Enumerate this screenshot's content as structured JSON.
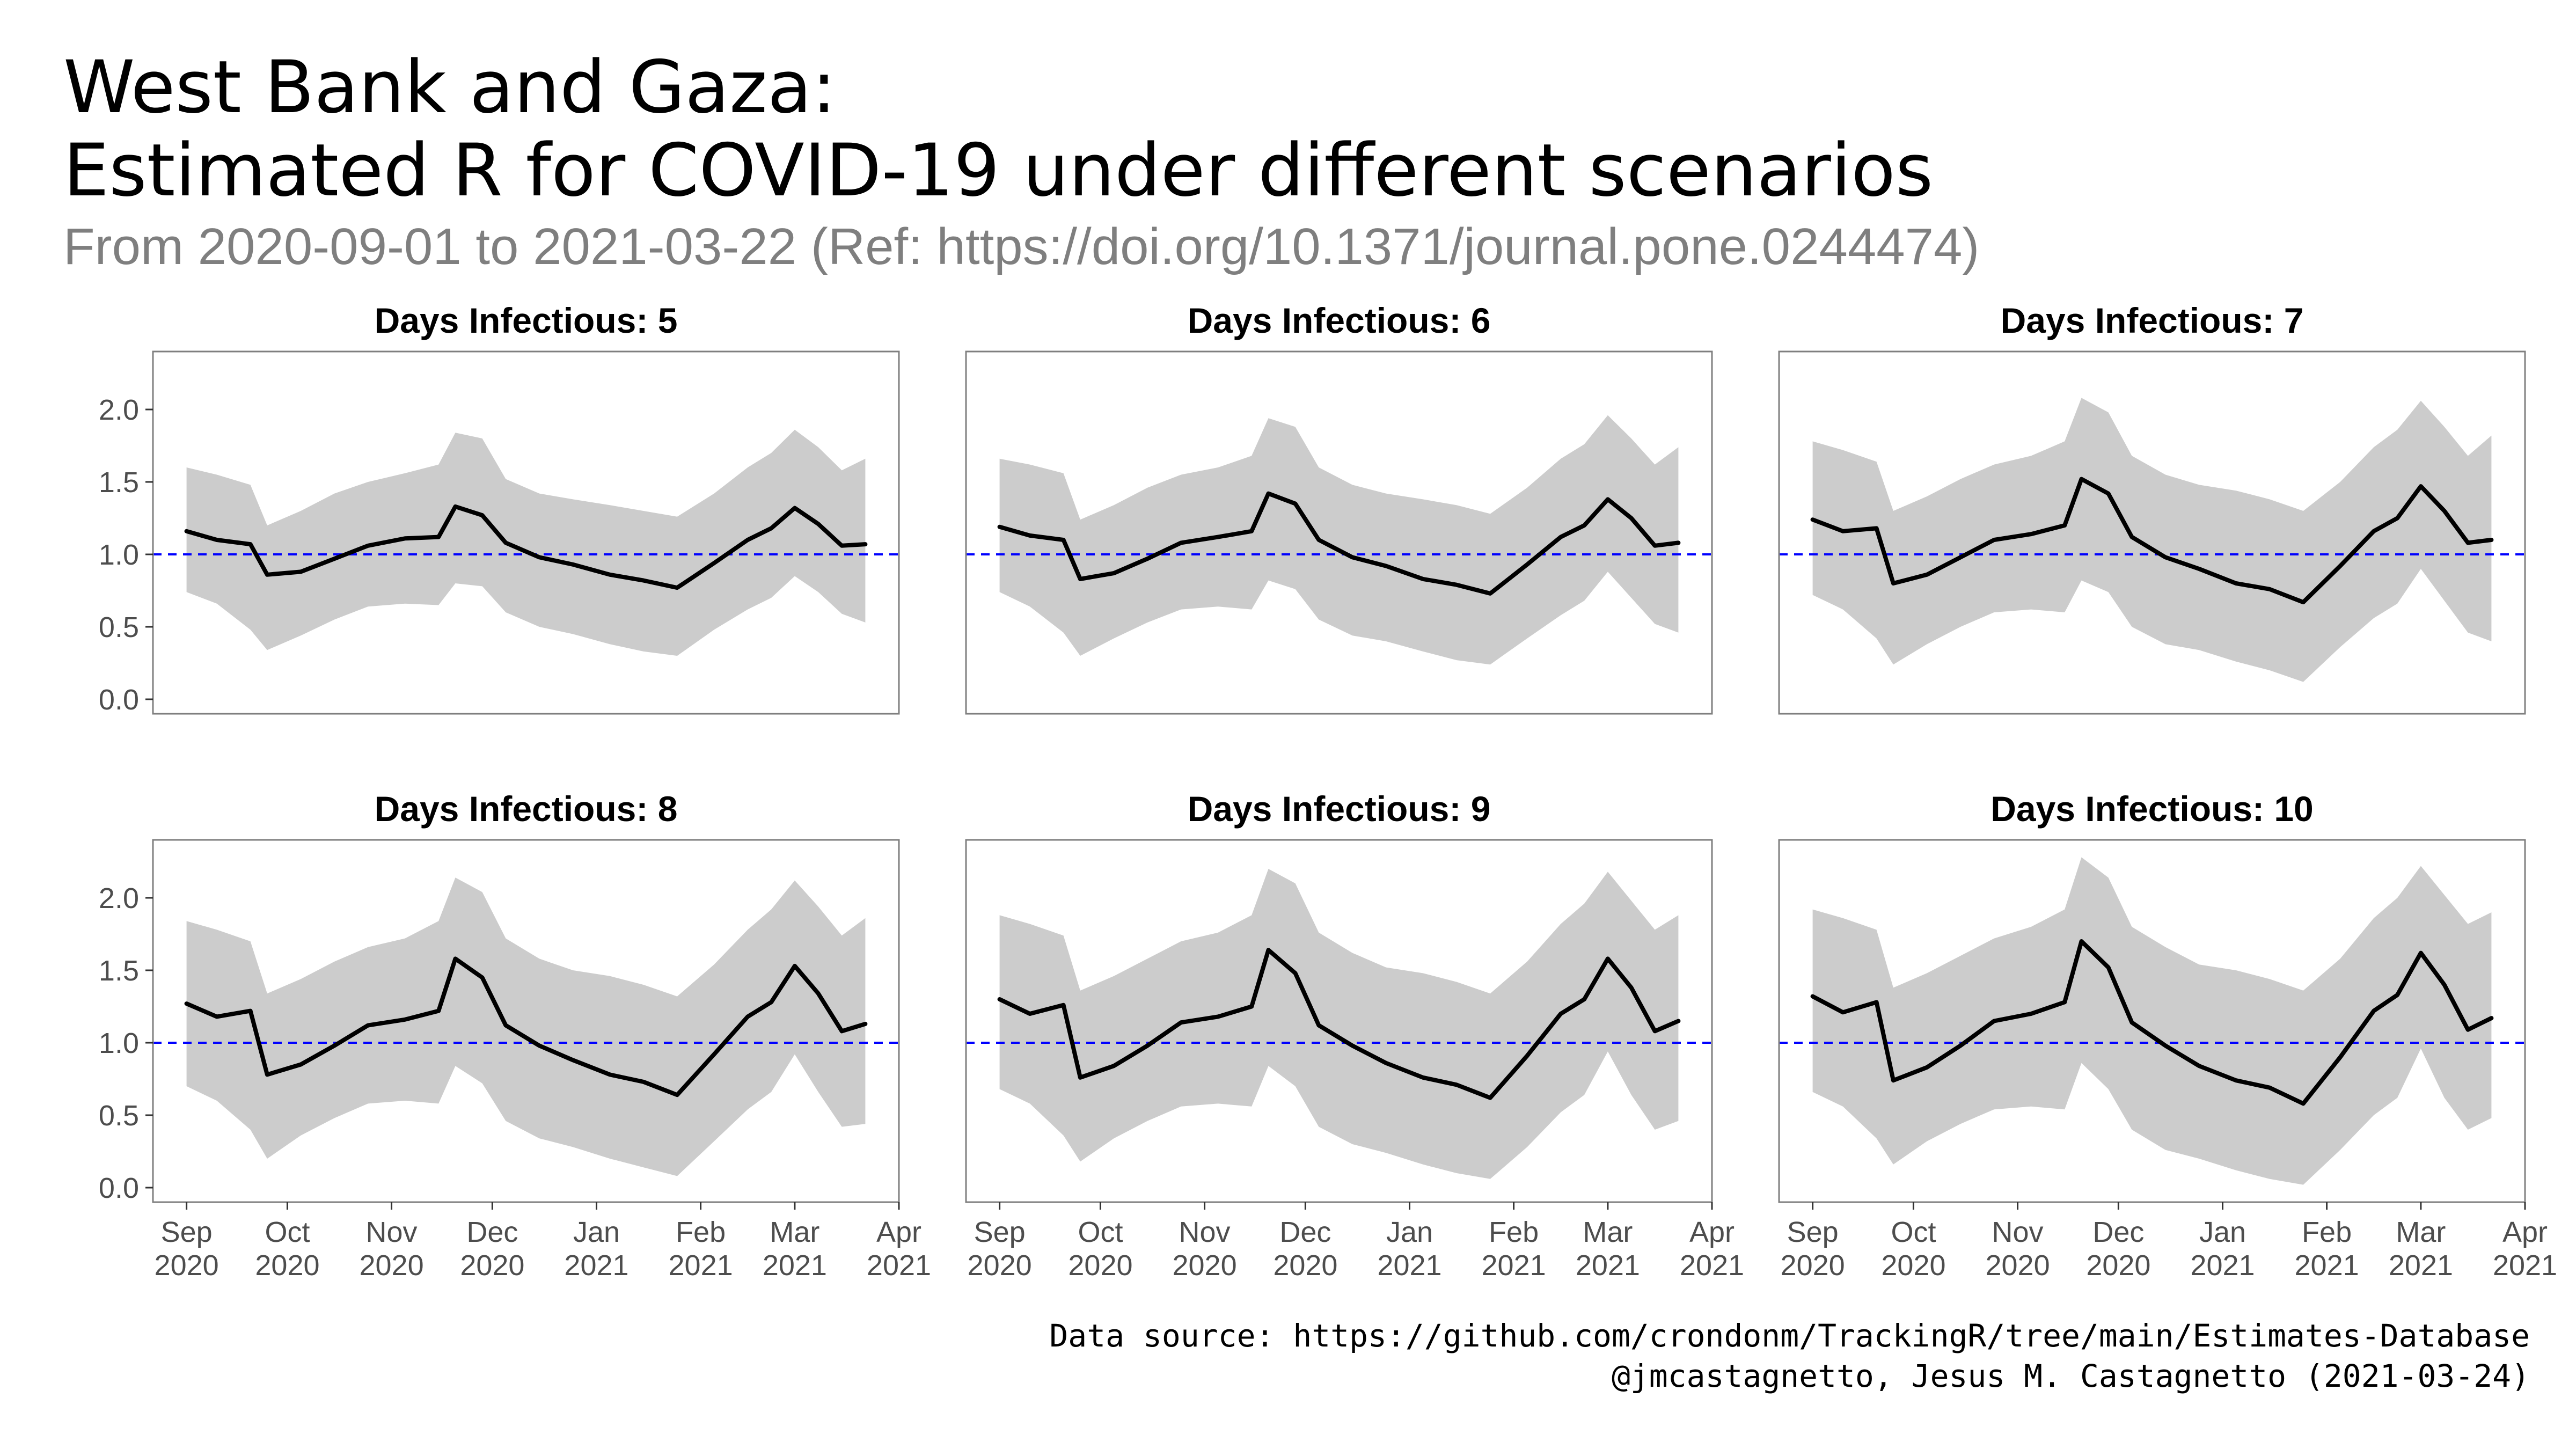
{
  "title_line1": "West Bank and Gaza:",
  "title_line2": "Estimated R for COVID-19 under different scenarios",
  "subtitle": "From 2020-09-01 to 2021-03-22 (Ref: https://doi.org/10.1371/journal.pone.0244474)",
  "caption_line1": "Data source: https://github.com/crondonm/TrackingR/tree/main/Estimates-Database",
  "caption_line2": "@jmcastagnetto, Jesus M. Castagnetto (2021-03-24)",
  "colors": {
    "line": "#000000",
    "ribbon": "#cccccc",
    "reference": "#0000ff",
    "panel_border": "#7f7f7f",
    "tick_text": "#4d4d4d"
  },
  "chart_data": {
    "type": "line",
    "layout": "facet grid, 2 rows x 3 columns",
    "grid": false,
    "y_ticks": [
      "0.0",
      "0.5",
      "1.0",
      "1.5",
      "2.0"
    ],
    "ylim": [
      -0.1,
      2.4
    ],
    "xlim": [
      "2020-08-22",
      "2021-04-01"
    ],
    "x_ticks": [
      {
        "date": "2020-09-01",
        "label": [
          "Sep",
          "2020"
        ]
      },
      {
        "date": "2020-10-01",
        "label": [
          "Oct",
          "2020"
        ]
      },
      {
        "date": "2020-11-01",
        "label": [
          "Nov",
          "2020"
        ]
      },
      {
        "date": "2020-12-01",
        "label": [
          "Dec",
          "2020"
        ]
      },
      {
        "date": "2021-01-01",
        "label": [
          "Jan",
          "2021"
        ]
      },
      {
        "date": "2021-02-01",
        "label": [
          "Feb",
          "2021"
        ]
      },
      {
        "date": "2021-03-01",
        "label": [
          "Mar",
          "2021"
        ]
      },
      {
        "date": "2021-04-01",
        "label": [
          "Apr",
          "2021"
        ]
      }
    ],
    "reference_line": 1.0,
    "panels": [
      {
        "title": "Days Infectious: 5",
        "dates": [
          "2020-09-01",
          "2020-09-10",
          "2020-09-20",
          "2020-09-25",
          "2020-10-05",
          "2020-10-15",
          "2020-10-25",
          "2020-11-05",
          "2020-11-15",
          "2020-11-20",
          "2020-11-28",
          "2020-12-05",
          "2020-12-15",
          "2020-12-25",
          "2021-01-05",
          "2021-01-15",
          "2021-01-25",
          "2021-02-05",
          "2021-02-15",
          "2021-02-22",
          "2021-03-01",
          "2021-03-08",
          "2021-03-15",
          "2021-03-22"
        ],
        "r": [
          1.16,
          1.1,
          1.07,
          0.86,
          0.88,
          0.97,
          1.06,
          1.11,
          1.12,
          1.33,
          1.27,
          1.08,
          0.98,
          0.93,
          0.86,
          0.82,
          0.77,
          0.94,
          1.1,
          1.18,
          1.32,
          1.21,
          1.06,
          1.07
        ],
        "lower": [
          0.74,
          0.66,
          0.48,
          0.34,
          0.44,
          0.55,
          0.64,
          0.66,
          0.65,
          0.8,
          0.78,
          0.6,
          0.5,
          0.45,
          0.38,
          0.33,
          0.3,
          0.48,
          0.62,
          0.7,
          0.85,
          0.74,
          0.59,
          0.53
        ],
        "upper": [
          1.6,
          1.55,
          1.48,
          1.2,
          1.3,
          1.42,
          1.5,
          1.56,
          1.62,
          1.84,
          1.8,
          1.52,
          1.42,
          1.38,
          1.34,
          1.3,
          1.26,
          1.42,
          1.6,
          1.7,
          1.86,
          1.74,
          1.58,
          1.66
        ]
      },
      {
        "title": "Days Infectious: 6",
        "dates": [
          "2020-09-01",
          "2020-09-10",
          "2020-09-20",
          "2020-09-25",
          "2020-10-05",
          "2020-10-15",
          "2020-10-25",
          "2020-11-05",
          "2020-11-15",
          "2020-11-20",
          "2020-11-28",
          "2020-12-05",
          "2020-12-15",
          "2020-12-25",
          "2021-01-05",
          "2021-01-15",
          "2021-01-25",
          "2021-02-05",
          "2021-02-15",
          "2021-02-22",
          "2021-03-01",
          "2021-03-08",
          "2021-03-15",
          "2021-03-22"
        ],
        "r": [
          1.19,
          1.13,
          1.1,
          0.83,
          0.87,
          0.97,
          1.08,
          1.12,
          1.16,
          1.42,
          1.35,
          1.1,
          0.98,
          0.92,
          0.83,
          0.79,
          0.73,
          0.93,
          1.12,
          1.2,
          1.38,
          1.25,
          1.06,
          1.08
        ],
        "lower": [
          0.74,
          0.64,
          0.46,
          0.3,
          0.42,
          0.53,
          0.62,
          0.64,
          0.62,
          0.82,
          0.76,
          0.55,
          0.44,
          0.4,
          0.33,
          0.27,
          0.24,
          0.42,
          0.58,
          0.68,
          0.88,
          0.7,
          0.52,
          0.46
        ],
        "upper": [
          1.66,
          1.62,
          1.56,
          1.24,
          1.34,
          1.46,
          1.55,
          1.6,
          1.68,
          1.94,
          1.88,
          1.6,
          1.48,
          1.42,
          1.38,
          1.34,
          1.28,
          1.46,
          1.66,
          1.76,
          1.96,
          1.8,
          1.62,
          1.74
        ]
      },
      {
        "title": "Days Infectious: 7",
        "dates": [
          "2020-09-01",
          "2020-09-10",
          "2020-09-20",
          "2020-09-25",
          "2020-10-05",
          "2020-10-15",
          "2020-10-25",
          "2020-11-05",
          "2020-11-15",
          "2020-11-20",
          "2020-11-28",
          "2020-12-05",
          "2020-12-15",
          "2020-12-25",
          "2021-01-05",
          "2021-01-15",
          "2021-01-25",
          "2021-02-05",
          "2021-02-15",
          "2021-02-22",
          "2021-03-01",
          "2021-03-08",
          "2021-03-15",
          "2021-03-22"
        ],
        "r": [
          1.24,
          1.16,
          1.18,
          0.8,
          0.86,
          0.98,
          1.1,
          1.14,
          1.2,
          1.52,
          1.42,
          1.12,
          0.98,
          0.9,
          0.8,
          0.76,
          0.67,
          0.92,
          1.16,
          1.25,
          1.47,
          1.3,
          1.08,
          1.1
        ],
        "lower": [
          0.72,
          0.62,
          0.42,
          0.24,
          0.38,
          0.5,
          0.6,
          0.62,
          0.6,
          0.82,
          0.74,
          0.5,
          0.38,
          0.34,
          0.26,
          0.2,
          0.12,
          0.36,
          0.56,
          0.66,
          0.9,
          0.68,
          0.46,
          0.4
        ],
        "upper": [
          1.78,
          1.72,
          1.64,
          1.3,
          1.4,
          1.52,
          1.62,
          1.68,
          1.78,
          2.08,
          1.98,
          1.68,
          1.55,
          1.48,
          1.44,
          1.38,
          1.3,
          1.5,
          1.74,
          1.86,
          2.06,
          1.88,
          1.68,
          1.82
        ]
      },
      {
        "title": "Days Infectious: 8",
        "dates": [
          "2020-09-01",
          "2020-09-10",
          "2020-09-20",
          "2020-09-25",
          "2020-10-05",
          "2020-10-15",
          "2020-10-25",
          "2020-11-05",
          "2020-11-15",
          "2020-11-20",
          "2020-11-28",
          "2020-12-05",
          "2020-12-15",
          "2020-12-25",
          "2021-01-05",
          "2021-01-15",
          "2021-01-25",
          "2021-02-05",
          "2021-02-15",
          "2021-02-22",
          "2021-03-01",
          "2021-03-08",
          "2021-03-15",
          "2021-03-22"
        ],
        "r": [
          1.27,
          1.18,
          1.22,
          0.78,
          0.85,
          0.98,
          1.12,
          1.16,
          1.22,
          1.58,
          1.45,
          1.12,
          0.98,
          0.88,
          0.78,
          0.73,
          0.64,
          0.92,
          1.18,
          1.28,
          1.53,
          1.34,
          1.08,
          1.13
        ],
        "lower": [
          0.7,
          0.6,
          0.4,
          0.2,
          0.36,
          0.48,
          0.58,
          0.6,
          0.58,
          0.84,
          0.72,
          0.46,
          0.34,
          0.28,
          0.2,
          0.14,
          0.08,
          0.32,
          0.54,
          0.66,
          0.92,
          0.66,
          0.42,
          0.44
        ],
        "upper": [
          1.84,
          1.78,
          1.7,
          1.34,
          1.44,
          1.56,
          1.66,
          1.72,
          1.84,
          2.14,
          2.04,
          1.72,
          1.58,
          1.5,
          1.46,
          1.4,
          1.32,
          1.54,
          1.78,
          1.92,
          2.12,
          1.94,
          1.74,
          1.86
        ]
      },
      {
        "title": "Days Infectious: 9",
        "dates": [
          "2020-09-01",
          "2020-09-10",
          "2020-09-20",
          "2020-09-25",
          "2020-10-05",
          "2020-10-15",
          "2020-10-25",
          "2020-11-05",
          "2020-11-15",
          "2020-11-20",
          "2020-11-28",
          "2020-12-05",
          "2020-12-15",
          "2020-12-25",
          "2021-01-05",
          "2021-01-15",
          "2021-01-25",
          "2021-02-05",
          "2021-02-15",
          "2021-02-22",
          "2021-03-01",
          "2021-03-08",
          "2021-03-15",
          "2021-03-22"
        ],
        "r": [
          1.3,
          1.2,
          1.26,
          0.76,
          0.84,
          0.98,
          1.14,
          1.18,
          1.25,
          1.64,
          1.48,
          1.12,
          0.98,
          0.86,
          0.76,
          0.71,
          0.62,
          0.91,
          1.2,
          1.3,
          1.58,
          1.38,
          1.08,
          1.15
        ],
        "lower": [
          0.68,
          0.58,
          0.36,
          0.18,
          0.34,
          0.46,
          0.56,
          0.58,
          0.56,
          0.84,
          0.7,
          0.42,
          0.3,
          0.24,
          0.16,
          0.1,
          0.06,
          0.28,
          0.52,
          0.64,
          0.94,
          0.64,
          0.4,
          0.46
        ],
        "upper": [
          1.88,
          1.82,
          1.74,
          1.36,
          1.46,
          1.58,
          1.7,
          1.76,
          1.88,
          2.2,
          2.1,
          1.76,
          1.62,
          1.52,
          1.48,
          1.42,
          1.34,
          1.56,
          1.82,
          1.96,
          2.18,
          1.98,
          1.78,
          1.88
        ]
      },
      {
        "title": "Days Infectious: 10",
        "dates": [
          "2020-09-01",
          "2020-09-10",
          "2020-09-20",
          "2020-09-25",
          "2020-10-05",
          "2020-10-15",
          "2020-10-25",
          "2020-11-05",
          "2020-11-15",
          "2020-11-20",
          "2020-11-28",
          "2020-12-05",
          "2020-12-15",
          "2020-12-25",
          "2021-01-05",
          "2021-01-15",
          "2021-01-25",
          "2021-02-05",
          "2021-02-15",
          "2021-02-22",
          "2021-03-01",
          "2021-03-08",
          "2021-03-15",
          "2021-03-22"
        ],
        "r": [
          1.32,
          1.21,
          1.28,
          0.74,
          0.83,
          0.98,
          1.15,
          1.2,
          1.28,
          1.7,
          1.52,
          1.14,
          0.98,
          0.84,
          0.74,
          0.69,
          0.58,
          0.9,
          1.22,
          1.33,
          1.62,
          1.4,
          1.09,
          1.17
        ],
        "lower": [
          0.66,
          0.56,
          0.34,
          0.16,
          0.32,
          0.44,
          0.54,
          0.56,
          0.54,
          0.86,
          0.68,
          0.4,
          0.26,
          0.2,
          0.12,
          0.06,
          0.02,
          0.26,
          0.5,
          0.62,
          0.96,
          0.62,
          0.4,
          0.48
        ],
        "upper": [
          1.92,
          1.86,
          1.78,
          1.38,
          1.48,
          1.6,
          1.72,
          1.8,
          1.92,
          2.28,
          2.14,
          1.8,
          1.66,
          1.54,
          1.5,
          1.44,
          1.36,
          1.58,
          1.86,
          2.0,
          2.22,
          2.02,
          1.82,
          1.9
        ]
      }
    ]
  }
}
